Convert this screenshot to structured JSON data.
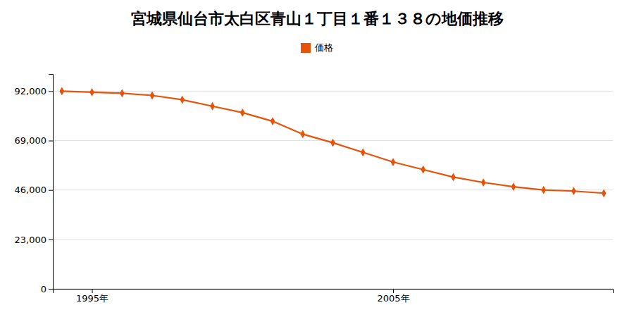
{
  "chart_data": {
    "type": "line",
    "title": "宮城県仙台市太白区青山１丁目１番１３８の地価推移",
    "x": [
      1994,
      1995,
      1996,
      1997,
      1998,
      1999,
      2000,
      2001,
      2002,
      2003,
      2004,
      2005,
      2006,
      2007,
      2008,
      2009,
      2010,
      2011,
      2012
    ],
    "series": [
      {
        "name": "価格",
        "color": "#e8530a",
        "marker": "diamond",
        "values": [
          92000,
          91500,
          91000,
          90000,
          88000,
          85000,
          82000,
          78000,
          72000,
          68000,
          63500,
          59000,
          55500,
          52000,
          49500,
          47500,
          46000,
          45500,
          44500
        ]
      }
    ],
    "xlim": [
      1993.7,
      2012.3
    ],
    "xticks": [
      {
        "value": 1995,
        "label": "1995年"
      },
      {
        "value": 2005,
        "label": "2005年"
      }
    ],
    "ylim": [
      0,
      100000
    ],
    "yticks": [
      0,
      {
        "value": 23000,
        "label": "23,000"
      },
      {
        "value": 46000,
        "label": "46,000"
      },
      {
        "value": 69000,
        "label": "69,000"
      },
      {
        "value": 92000,
        "label": "92,000"
      }
    ],
    "grid": true,
    "legend": "top"
  }
}
